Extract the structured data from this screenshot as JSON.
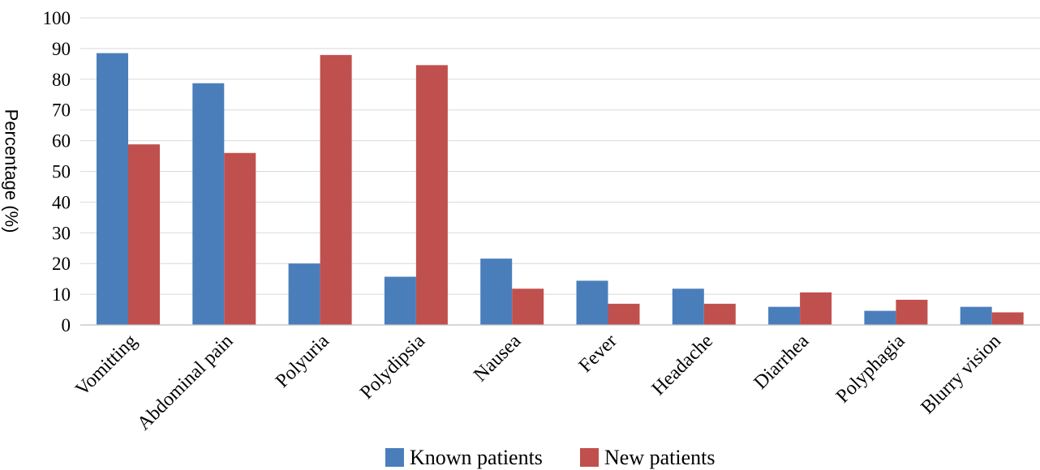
{
  "chart_data": {
    "type": "bar",
    "ylabel": "Percentage (%)",
    "xlabel": "",
    "ylim": [
      0,
      100
    ],
    "yticks": [
      0,
      10,
      20,
      30,
      40,
      50,
      60,
      70,
      80,
      90,
      100
    ],
    "grid": true,
    "legend_position": "bottom",
    "categories": [
      "Vomitting",
      "Abdominal pain",
      "Polyuria",
      "Polydipsia",
      "Nausea",
      "Fever",
      "Headache",
      "Diarrhea",
      "Polyphagia",
      "Blurry vision"
    ],
    "series": [
      {
        "name": "Known patients",
        "color": "#4a7ebb",
        "values": [
          88.5,
          78.7,
          20.0,
          15.7,
          21.6,
          14.4,
          11.8,
          5.9,
          4.6,
          5.9
        ]
      },
      {
        "name": "New patients",
        "color": "#c0504d",
        "values": [
          58.8,
          56.0,
          87.9,
          84.6,
          11.8,
          6.9,
          6.9,
          10.6,
          8.2,
          4.1
        ]
      }
    ]
  }
}
